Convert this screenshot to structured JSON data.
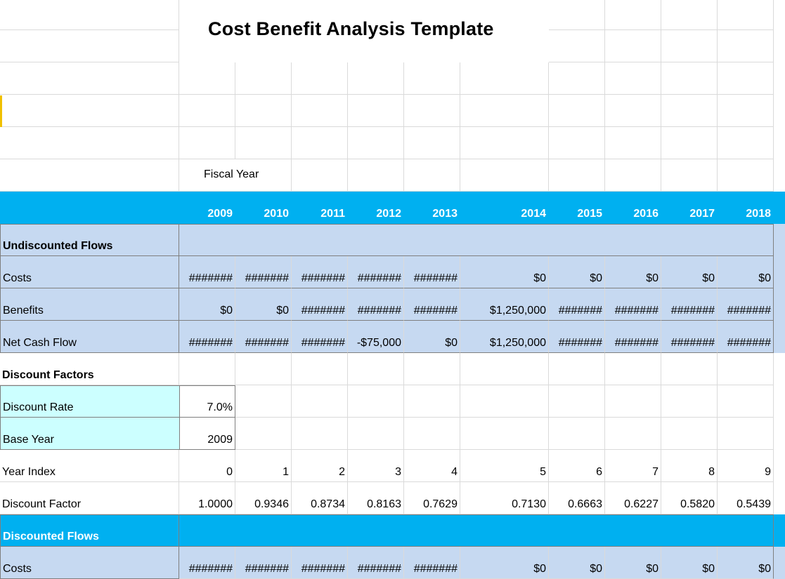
{
  "title": "Cost Benefit Analysis Template",
  "fiscal_year_label": "Fiscal Year",
  "years": [
    "2009",
    "2010",
    "2011",
    "2012",
    "2013",
    "2014",
    "2015",
    "2016",
    "2017",
    "2018"
  ],
  "sections": {
    "undiscounted": "Undiscounted Flows",
    "discount_factors": "Discount Factors",
    "discounted": "Discounted Flows"
  },
  "rows": {
    "costs": {
      "label": "Costs",
      "values": [
        "#######",
        "#######",
        "#######",
        "#######",
        "#######",
        "$0",
        "$0",
        "$0",
        "$0",
        "$0"
      ]
    },
    "benefits": {
      "label": "Benefits",
      "values": [
        "$0",
        "$0",
        "#######",
        "#######",
        "#######",
        "$1,250,000",
        "#######",
        "#######",
        "#######",
        "#######"
      ]
    },
    "net_cash_flow": {
      "label": "Net Cash Flow",
      "values": [
        "#######",
        "#######",
        "#######",
        "-$75,000",
        "$0",
        "$1,250,000",
        "#######",
        "#######",
        "#######",
        "#######"
      ]
    },
    "discount_rate": {
      "label": "Discount Rate",
      "value": "7.0%"
    },
    "base_year": {
      "label": "Base Year",
      "value": "2009"
    },
    "year_index": {
      "label": "Year Index",
      "values": [
        "0",
        "1",
        "2",
        "3",
        "4",
        "5",
        "6",
        "7",
        "8",
        "9"
      ]
    },
    "discount_factor": {
      "label": "Discount Factor",
      "values": [
        "1.0000",
        "0.9346",
        "0.8734",
        "0.8163",
        "0.7629",
        "0.7130",
        "0.6663",
        "0.6227",
        "0.5820",
        "0.5439"
      ]
    },
    "disc_costs": {
      "label": "Costs",
      "values": [
        "#######",
        "#######",
        "#######",
        "#######",
        "#######",
        "$0",
        "$0",
        "$0",
        "$0",
        "$0"
      ]
    }
  },
  "colors": {
    "header_blue": "#00b0f0",
    "band_light_blue": "#c6d9f1",
    "input_cyan": "#ccffff"
  }
}
